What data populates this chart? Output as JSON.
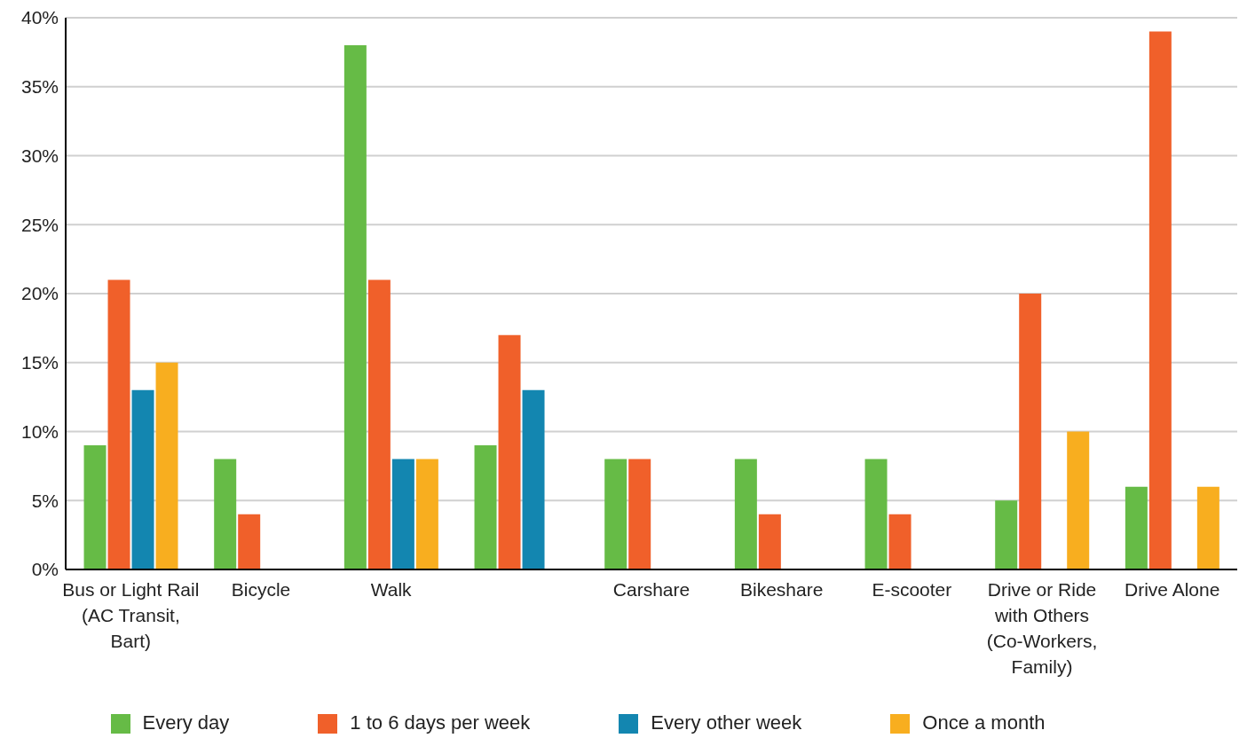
{
  "chart_data": {
    "type": "bar",
    "categories": [
      "Bus or Light Rail (AC Transit, Bart)",
      "Bicycle",
      "Walk",
      null,
      "Carshare",
      "Bikeshare",
      "E-scooter",
      "Drive or Ride with Others (Co-Workers, Family)",
      "Drive Alone"
    ],
    "series": [
      {
        "name": "Every day",
        "color": "#66bb46",
        "values": [
          9,
          8,
          38,
          9,
          8,
          8,
          8,
          5,
          6
        ]
      },
      {
        "name": "1 to 6 days per week",
        "color": "#f0602a",
        "values": [
          21,
          4,
          21,
          17,
          8,
          4,
          4,
          20,
          39
        ]
      },
      {
        "name": "Every other week",
        "color": "#1386b0",
        "values": [
          13,
          0,
          8,
          13,
          0,
          0,
          0,
          0,
          0
        ]
      },
      {
        "name": "Once a month",
        "color": "#f8ae1f",
        "values": [
          15,
          0,
          8,
          0,
          0,
          0,
          0,
          10,
          6
        ]
      }
    ],
    "ylim": [
      0,
      40
    ],
    "yticks": [
      {
        "value": 0,
        "label": "0%"
      },
      {
        "value": 5,
        "label": "5%"
      },
      {
        "value": 10,
        "label": "10%"
      },
      {
        "value": 15,
        "label": "15%"
      },
      {
        "value": 20,
        "label": "20%"
      },
      {
        "value": 25,
        "label": "25%"
      },
      {
        "value": 30,
        "label": "30%"
      },
      {
        "value": 35,
        "label": "35%"
      },
      {
        "value": 40,
        "label": "40%"
      }
    ],
    "grid": "y",
    "legend": "bottom"
  }
}
